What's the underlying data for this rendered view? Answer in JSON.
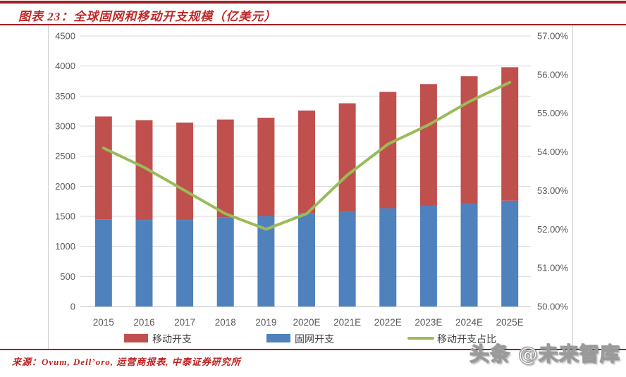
{
  "header": {
    "title": "图表 23：全球固网和移动开支规模（亿美元）"
  },
  "chart_data": {
    "type": "bar",
    "subtype": "stacked-bar-with-line",
    "categories": [
      "2015",
      "2016",
      "2017",
      "2018",
      "2019",
      "2020E",
      "2021E",
      "2022E",
      "2023E",
      "2024E",
      "2025E"
    ],
    "series": [
      {
        "name": "移动开支",
        "type": "bar",
        "stack_index": 1,
        "color": "#C0504D",
        "axis": "left",
        "values": [
          1710,
          1660,
          1620,
          1630,
          1635,
          1710,
          1805,
          1935,
          2025,
          2120,
          2220
        ]
      },
      {
        "name": "固网开支",
        "type": "bar",
        "stack_index": 0,
        "color": "#4F81BD",
        "axis": "left",
        "values": [
          1450,
          1440,
          1440,
          1480,
          1505,
          1550,
          1575,
          1635,
          1675,
          1710,
          1760
        ]
      },
      {
        "name": "移动开支占比",
        "type": "line",
        "color": "#9BBB59",
        "axis": "right",
        "values": [
          54.1,
          53.6,
          53.0,
          52.4,
          52.0,
          52.4,
          53.4,
          54.2,
          54.7,
          55.3,
          55.8
        ]
      }
    ],
    "stacked_totals": [
      3160,
      3100,
      3060,
      3110,
      3140,
      3260,
      3380,
      3570,
      3700,
      3830,
      3980
    ],
    "left_axis": {
      "min": 0,
      "max": 4500,
      "step": 500
    },
    "right_axis": {
      "min": 50,
      "max": 57,
      "step": 1,
      "decimals": 2,
      "suffix": "%"
    },
    "grid": "horizontal",
    "legend_position": "bottom",
    "colors": {
      "gridline": "#d9d9d9",
      "baseline": "#bfbfbf",
      "tick_text": "#595959"
    }
  },
  "footer": {
    "source": "来源：Ovum, Dell’oro, 运营商报表, 中泰证券研究所"
  },
  "watermark": "头条 @未来智库"
}
